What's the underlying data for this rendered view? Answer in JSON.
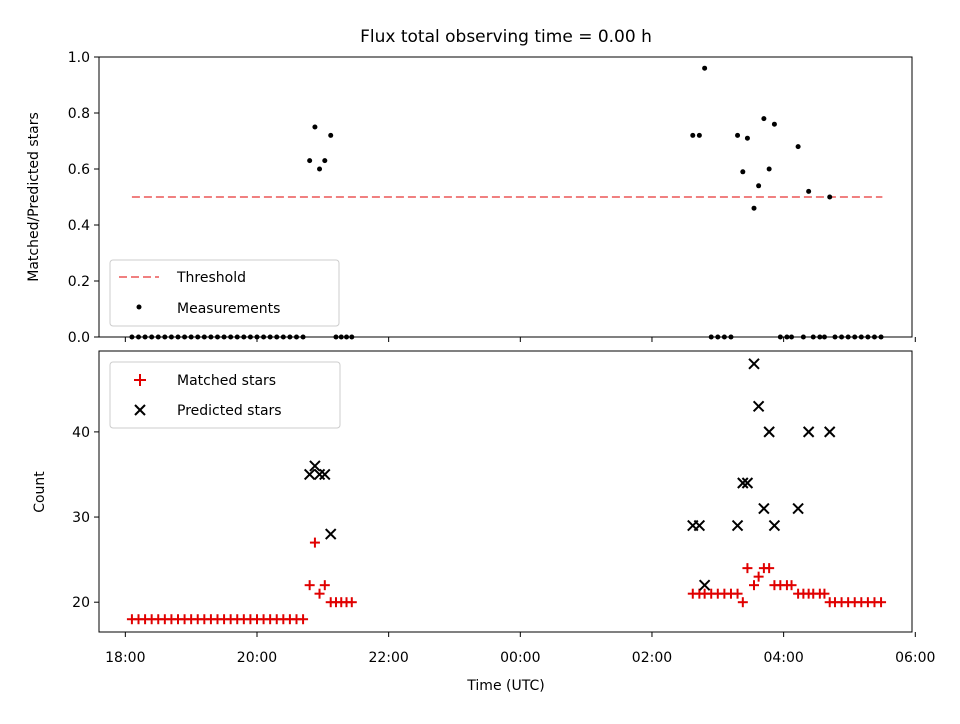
{
  "title": "Flux total observing time = 0.00 h",
  "chart_data": [
    {
      "type": "scatter",
      "panel": "top",
      "ylabel": "Matched/Predicted stars",
      "ylim": [
        0.0,
        1.0
      ],
      "yticks": [
        "0.0",
        "0.2",
        "0.4",
        "0.6",
        "0.8",
        "1.0"
      ],
      "xlim_hours": [
        17.6,
        29.95
      ],
      "grid": false,
      "legend_position": "lower left",
      "threshold": {
        "name": "Threshold",
        "value": 0.5,
        "x_start": 18.1,
        "x_end": 29.5,
        "color": "#f08080"
      },
      "measurements": {
        "name": "Measurements",
        "color": "#000000",
        "points": [
          [
            18.1,
            0
          ],
          [
            18.2,
            0
          ],
          [
            18.3,
            0
          ],
          [
            18.4,
            0
          ],
          [
            18.5,
            0
          ],
          [
            18.6,
            0
          ],
          [
            18.7,
            0
          ],
          [
            18.8,
            0
          ],
          [
            18.9,
            0
          ],
          [
            19.0,
            0
          ],
          [
            19.1,
            0
          ],
          [
            19.2,
            0
          ],
          [
            19.3,
            0
          ],
          [
            19.4,
            0
          ],
          [
            19.5,
            0
          ],
          [
            19.6,
            0
          ],
          [
            19.7,
            0
          ],
          [
            19.8,
            0
          ],
          [
            19.9,
            0
          ],
          [
            20.0,
            0
          ],
          [
            20.1,
            0
          ],
          [
            20.2,
            0
          ],
          [
            20.3,
            0
          ],
          [
            20.4,
            0
          ],
          [
            20.5,
            0
          ],
          [
            20.6,
            0
          ],
          [
            20.7,
            0
          ],
          [
            20.8,
            0.63
          ],
          [
            20.88,
            0.75
          ],
          [
            20.95,
            0.6
          ],
          [
            21.03,
            0.63
          ],
          [
            21.12,
            0.72
          ],
          [
            21.2,
            0
          ],
          [
            21.28,
            0
          ],
          [
            21.36,
            0
          ],
          [
            21.44,
            0
          ],
          [
            26.62,
            0.72
          ],
          [
            26.72,
            0.72
          ],
          [
            26.8,
            0.96
          ],
          [
            26.9,
            0
          ],
          [
            27.0,
            0
          ],
          [
            27.1,
            0
          ],
          [
            27.2,
            0
          ],
          [
            27.3,
            0.72
          ],
          [
            27.38,
            0.59
          ],
          [
            27.45,
            0.71
          ],
          [
            27.55,
            0.46
          ],
          [
            27.62,
            0.54
          ],
          [
            27.7,
            0.78
          ],
          [
            27.78,
            0.6
          ],
          [
            27.86,
            0.76
          ],
          [
            27.95,
            0
          ],
          [
            28.05,
            0
          ],
          [
            28.12,
            0
          ],
          [
            28.22,
            0.68
          ],
          [
            28.3,
            0
          ],
          [
            28.38,
            0.52
          ],
          [
            28.45,
            0
          ],
          [
            28.55,
            0
          ],
          [
            28.62,
            0
          ],
          [
            28.7,
            0.5
          ],
          [
            28.78,
            0
          ],
          [
            28.88,
            0
          ],
          [
            28.98,
            0
          ],
          [
            29.08,
            0
          ],
          [
            29.18,
            0
          ],
          [
            29.28,
            0
          ],
          [
            29.38,
            0
          ],
          [
            29.48,
            0
          ]
        ]
      }
    },
    {
      "type": "scatter",
      "panel": "bottom",
      "xlabel": "Time (UTC)",
      "ylabel": "Count",
      "ylim": [
        16.5,
        49.5
      ],
      "yticks": [
        "20",
        "30",
        "40"
      ],
      "xlim_hours": [
        17.6,
        29.95
      ],
      "xticks": [
        "18:00",
        "20:00",
        "22:00",
        "00:00",
        "02:00",
        "04:00",
        "06:00"
      ],
      "grid": false,
      "legend_position": "upper left",
      "series": [
        {
          "name": "Matched stars",
          "marker": "plus",
          "color": "#e00000",
          "points": [
            [
              18.1,
              18
            ],
            [
              18.2,
              18
            ],
            [
              18.3,
              18
            ],
            [
              18.4,
              18
            ],
            [
              18.5,
              18
            ],
            [
              18.6,
              18
            ],
            [
              18.7,
              18
            ],
            [
              18.8,
              18
            ],
            [
              18.9,
              18
            ],
            [
              19.0,
              18
            ],
            [
              19.1,
              18
            ],
            [
              19.2,
              18
            ],
            [
              19.3,
              18
            ],
            [
              19.4,
              18
            ],
            [
              19.5,
              18
            ],
            [
              19.6,
              18
            ],
            [
              19.7,
              18
            ],
            [
              19.8,
              18
            ],
            [
              19.9,
              18
            ],
            [
              20.0,
              18
            ],
            [
              20.1,
              18
            ],
            [
              20.2,
              18
            ],
            [
              20.3,
              18
            ],
            [
              20.4,
              18
            ],
            [
              20.5,
              18
            ],
            [
              20.6,
              18
            ],
            [
              20.7,
              18
            ],
            [
              20.8,
              22
            ],
            [
              20.88,
              27
            ],
            [
              20.95,
              21
            ],
            [
              21.03,
              22
            ],
            [
              21.12,
              20
            ],
            [
              21.2,
              20
            ],
            [
              21.28,
              20
            ],
            [
              21.36,
              20
            ],
            [
              21.44,
              20
            ],
            [
              26.62,
              21
            ],
            [
              26.72,
              21
            ],
            [
              26.8,
              21
            ],
            [
              26.9,
              21
            ],
            [
              27.0,
              21
            ],
            [
              27.1,
              21
            ],
            [
              27.2,
              21
            ],
            [
              27.3,
              21
            ],
            [
              27.38,
              20
            ],
            [
              27.45,
              24
            ],
            [
              27.55,
              22
            ],
            [
              27.62,
              23
            ],
            [
              27.7,
              24
            ],
            [
              27.78,
              24
            ],
            [
              27.86,
              22
            ],
            [
              27.95,
              22
            ],
            [
              28.05,
              22
            ],
            [
              28.12,
              22
            ],
            [
              28.22,
              21
            ],
            [
              28.3,
              21
            ],
            [
              28.38,
              21
            ],
            [
              28.45,
              21
            ],
            [
              28.55,
              21
            ],
            [
              28.62,
              21
            ],
            [
              28.7,
              20
            ],
            [
              28.78,
              20
            ],
            [
              28.88,
              20
            ],
            [
              28.98,
              20
            ],
            [
              29.08,
              20
            ],
            [
              29.18,
              20
            ],
            [
              29.28,
              20
            ],
            [
              29.38,
              20
            ],
            [
              29.48,
              20
            ]
          ]
        },
        {
          "name": "Predicted stars",
          "marker": "x",
          "color": "#000000",
          "points": [
            [
              20.8,
              35
            ],
            [
              20.88,
              36
            ],
            [
              20.95,
              35
            ],
            [
              21.03,
              35
            ],
            [
              21.12,
              28
            ],
            [
              26.62,
              29
            ],
            [
              26.72,
              29
            ],
            [
              26.8,
              22
            ],
            [
              27.3,
              29
            ],
            [
              27.38,
              34
            ],
            [
              27.45,
              34
            ],
            [
              27.55,
              48
            ],
            [
              27.62,
              43
            ],
            [
              27.7,
              31
            ],
            [
              27.78,
              40
            ],
            [
              27.86,
              29
            ],
            [
              28.22,
              31
            ],
            [
              28.38,
              40
            ],
            [
              28.7,
              40
            ]
          ]
        }
      ]
    }
  ]
}
